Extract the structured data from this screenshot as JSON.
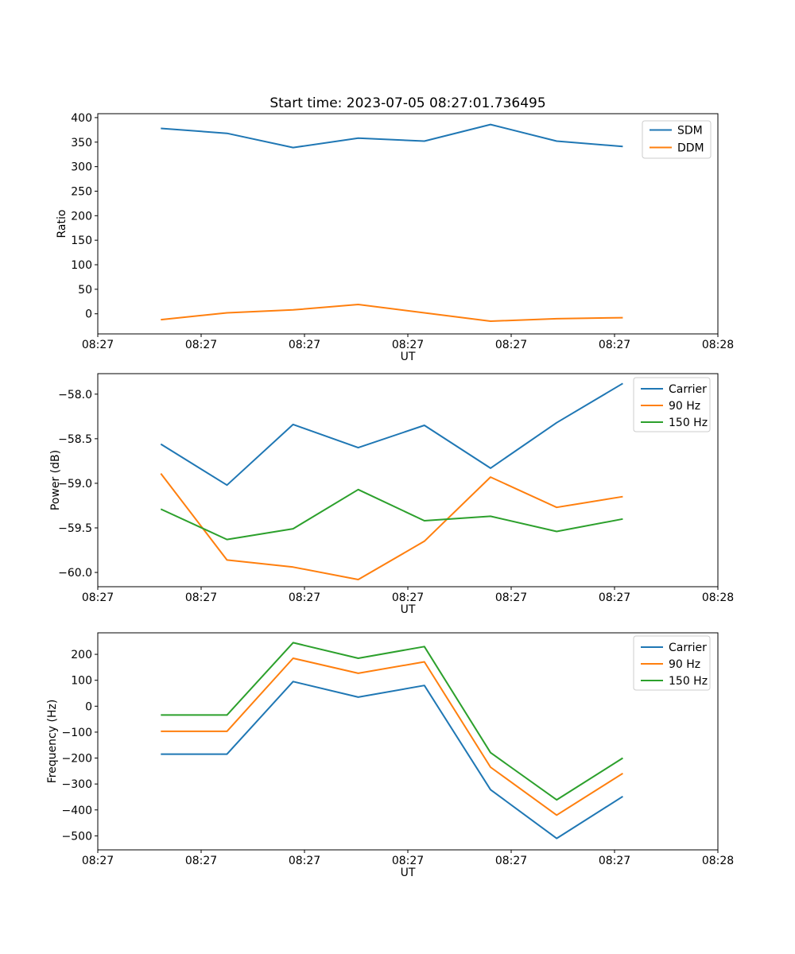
{
  "figure": {
    "title": "Start time: 2023-07-05 08:27:01.736495",
    "frame_color": "#000000",
    "legend_border_color": "#cccccc",
    "background_color": "#ffffff"
  },
  "chart_data": [
    {
      "type": "line",
      "name": "ratio",
      "xlabel": "UT",
      "ylabel": "Ratio",
      "grid": false,
      "legend_position": "top-right",
      "xlim_seconds": [
        0,
        60
      ],
      "xtick_seconds": [
        0,
        10,
        20,
        30,
        40,
        50,
        60
      ],
      "xtick_labels": [
        "08:27",
        "08:27",
        "08:27",
        "08:27",
        "08:27",
        "08:27",
        "08:28"
      ],
      "ylim": [
        -41,
        408
      ],
      "yticks": [
        0,
        50,
        100,
        150,
        200,
        250,
        300,
        350,
        400
      ],
      "ytick_labels": [
        "0",
        "50",
        "100",
        "150",
        "200",
        "250",
        "300",
        "350",
        "400"
      ],
      "x_seconds": [
        6.1,
        12.5,
        18.9,
        25.2,
        31.6,
        38.0,
        44.4,
        50.8
      ],
      "series": [
        {
          "name": "SDM",
          "color": "#1f77b4",
          "values": [
            378,
            368,
            339,
            358,
            352,
            386,
            352,
            341
          ]
        },
        {
          "name": "DDM",
          "color": "#ff7f0e",
          "values": [
            -12,
            2,
            8,
            19,
            2,
            -15,
            -10,
            -8
          ]
        }
      ]
    },
    {
      "type": "line",
      "name": "power",
      "xlabel": "UT",
      "ylabel": "Power (dB)",
      "grid": false,
      "legend_position": "top-right",
      "xlim_seconds": [
        0,
        60
      ],
      "xtick_seconds": [
        0,
        10,
        20,
        30,
        40,
        50,
        60
      ],
      "xtick_labels": [
        "08:27",
        "08:27",
        "08:27",
        "08:27",
        "08:27",
        "08:27",
        "08:28"
      ],
      "ylim": [
        -60.16,
        -57.77
      ],
      "yticks": [
        -60.0,
        -59.5,
        -59.0,
        -58.5,
        -58.0
      ],
      "ytick_labels": [
        "−60.0",
        "−59.5",
        "−59.0",
        "−58.5",
        "−58.0"
      ],
      "x_seconds": [
        6.1,
        12.5,
        18.9,
        25.2,
        31.6,
        38.0,
        44.4,
        50.8
      ],
      "series": [
        {
          "name": "Carrier",
          "color": "#1f77b4",
          "values": [
            -58.56,
            -59.02,
            -58.34,
            -58.6,
            -58.35,
            -58.83,
            -58.32,
            -57.88
          ]
        },
        {
          "name": "90 Hz",
          "color": "#ff7f0e",
          "values": [
            -58.89,
            -59.86,
            -59.94,
            -60.08,
            -59.65,
            -58.93,
            -59.27,
            -59.15
          ]
        },
        {
          "name": "150 Hz",
          "color": "#2ca02c",
          "values": [
            -59.29,
            -59.63,
            -59.51,
            -59.07,
            -59.42,
            -59.37,
            -59.54,
            -59.4
          ]
        }
      ]
    },
    {
      "type": "line",
      "name": "frequency",
      "xlabel": "UT",
      "ylabel": "Frequency (Hz)",
      "grid": false,
      "legend_position": "top-right",
      "xlim_seconds": [
        0,
        60
      ],
      "xtick_seconds": [
        0,
        10,
        20,
        30,
        40,
        50,
        60
      ],
      "xtick_labels": [
        "08:27",
        "08:27",
        "08:27",
        "08:27",
        "08:27",
        "08:27",
        "08:28"
      ],
      "ylim": [
        -554,
        283
      ],
      "yticks": [
        -500,
        -400,
        -300,
        -200,
        -100,
        0,
        100,
        200
      ],
      "ytick_labels": [
        "−500",
        "−400",
        "−300",
        "−200",
        "−100",
        "0",
        "100",
        "200"
      ],
      "x_seconds": [
        6.1,
        12.5,
        18.9,
        25.2,
        31.6,
        38.0,
        44.4,
        50.8
      ],
      "series": [
        {
          "name": "Carrier",
          "color": "#1f77b4",
          "values": [
            -185,
            -185,
            95,
            35,
            80,
            -322,
            -510,
            -348
          ]
        },
        {
          "name": "90 Hz",
          "color": "#ff7f0e",
          "values": [
            -97,
            -97,
            185,
            127,
            171,
            -235,
            -420,
            -259
          ]
        },
        {
          "name": "150 Hz",
          "color": "#2ca02c",
          "values": [
            -34,
            -34,
            245,
            185,
            230,
            -179,
            -361,
            -200
          ]
        }
      ]
    }
  ]
}
